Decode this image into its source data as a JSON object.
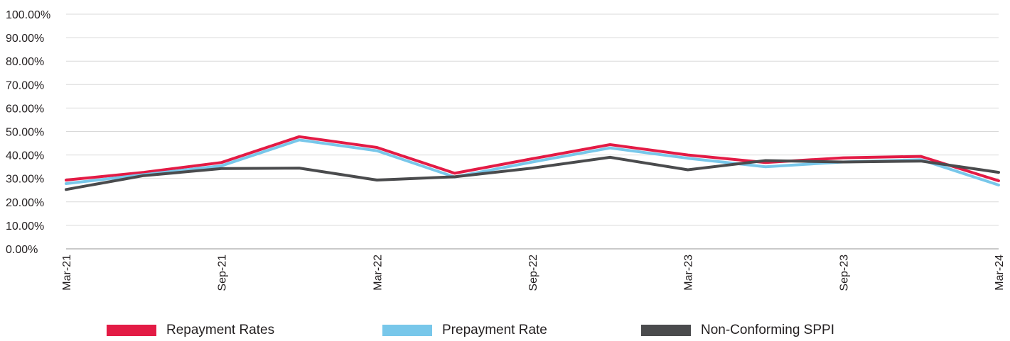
{
  "chart_data": {
    "type": "line",
    "title": "",
    "xlabel": "",
    "ylabel": "",
    "ylim": [
      0,
      100
    ],
    "y_ticks": [
      "0.00%",
      "10.00%",
      "20.00%",
      "30.00%",
      "40.00%",
      "50.00%",
      "60.00%",
      "70.00%",
      "80.00%",
      "90.00%",
      "100.00%"
    ],
    "x": [
      "Mar-21",
      "Jun-21",
      "Sep-21",
      "Dec-21",
      "Mar-22",
      "Jun-22",
      "Sep-22",
      "Dec-22",
      "Mar-23",
      "Jun-23",
      "Sep-23",
      "Dec-23",
      "Mar-24"
    ],
    "x_tick_labels": [
      "Mar-21",
      "",
      "Sep-21",
      "",
      "Mar-22",
      "",
      "Sep-22",
      "",
      "Mar-23",
      "",
      "Sep-23",
      "",
      "Mar-24"
    ],
    "grid": true,
    "legend_position": "bottom",
    "series": [
      {
        "name": "Repayment Rates",
        "color": "#e31b45",
        "values": [
          29.3,
          32.6,
          36.8,
          47.8,
          43.2,
          32.2,
          38.4,
          44.4,
          40.0,
          36.8,
          38.8,
          39.4,
          29.0
        ]
      },
      {
        "name": "Prepayment Rate",
        "color": "#78c7ea",
        "values": [
          27.8,
          31.6,
          35.4,
          46.4,
          41.8,
          30.6,
          37.0,
          43.0,
          38.6,
          35.0,
          37.0,
          38.0,
          27.2
        ]
      },
      {
        "name": "Non-Conforming SPPI",
        "color": "#4a4b4d",
        "values": [
          25.3,
          31.2,
          34.2,
          34.4,
          29.3,
          30.7,
          34.4,
          39.0,
          33.7,
          37.6,
          37.0,
          37.4,
          32.6
        ]
      }
    ]
  }
}
